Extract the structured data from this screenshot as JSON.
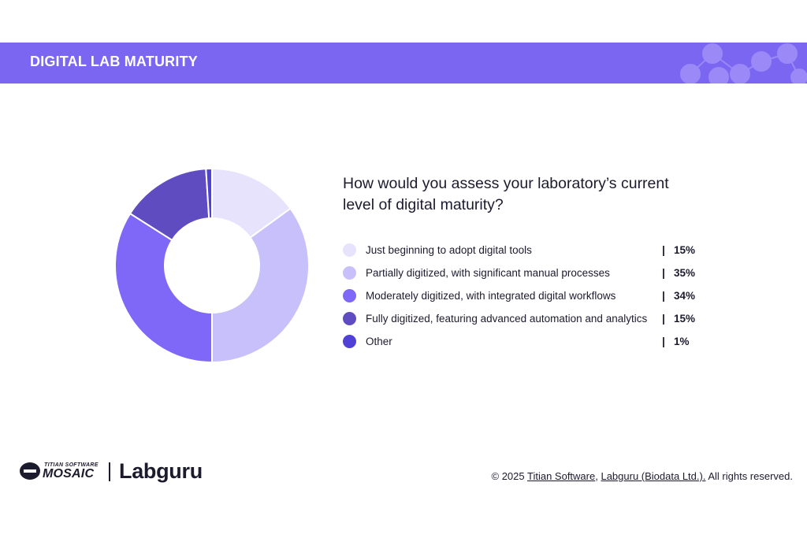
{
  "header": {
    "title": "DIGITAL LAB MATURITY"
  },
  "question": "How would you assess your laboratory’s current level of digital maturity?",
  "legend_separator": "|",
  "chart_data": {
    "type": "pie",
    "title": "",
    "donut": true,
    "start": "top, clockwise",
    "categories": [
      "Just beginning to adopt digital tools",
      "Partially digitized, with significant manual processes",
      "Moderately digitized, with integrated digital workflows",
      "Fully digitized, featuring advanced automation and analytics",
      "Other"
    ],
    "values": [
      15,
      35,
      34,
      15,
      1
    ],
    "value_labels": [
      "15%",
      "35%",
      "34%",
      "15%",
      "1%"
    ],
    "colors": [
      "#e7e3fd",
      "#c7c0fb",
      "#7f68f7",
      "#5f4cc0",
      "#5040d6"
    ],
    "legend": "right"
  },
  "footer": {
    "logo_small": "TITIAN SOFTWARE",
    "logo_big": "MOSAIC",
    "logo_labguru": "Labguru",
    "copyright_prefix": "© 2025 ",
    "copyright_link1": "Titian Software",
    "copyright_sep": ", ",
    "copyright_link2": "Labguru (Biodata Ltd.).",
    "copyright_suffix": " All rights reserved."
  }
}
